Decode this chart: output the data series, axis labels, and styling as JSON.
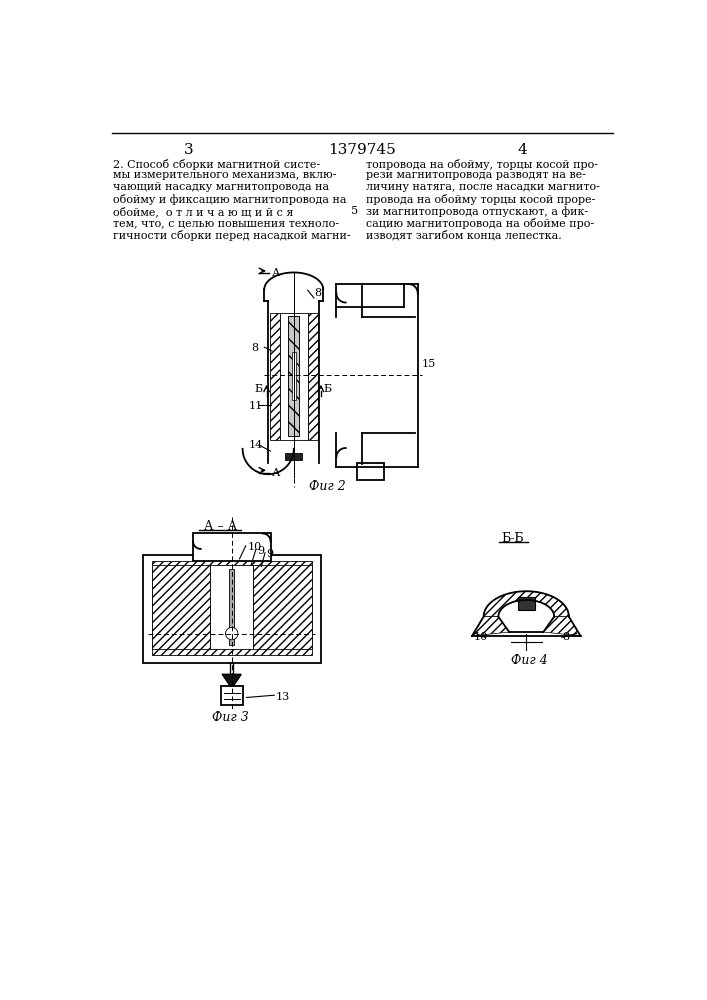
{
  "page_number_left": "3",
  "page_number_right": "4",
  "patent_number": "1379745",
  "background_color": "#ffffff"
}
